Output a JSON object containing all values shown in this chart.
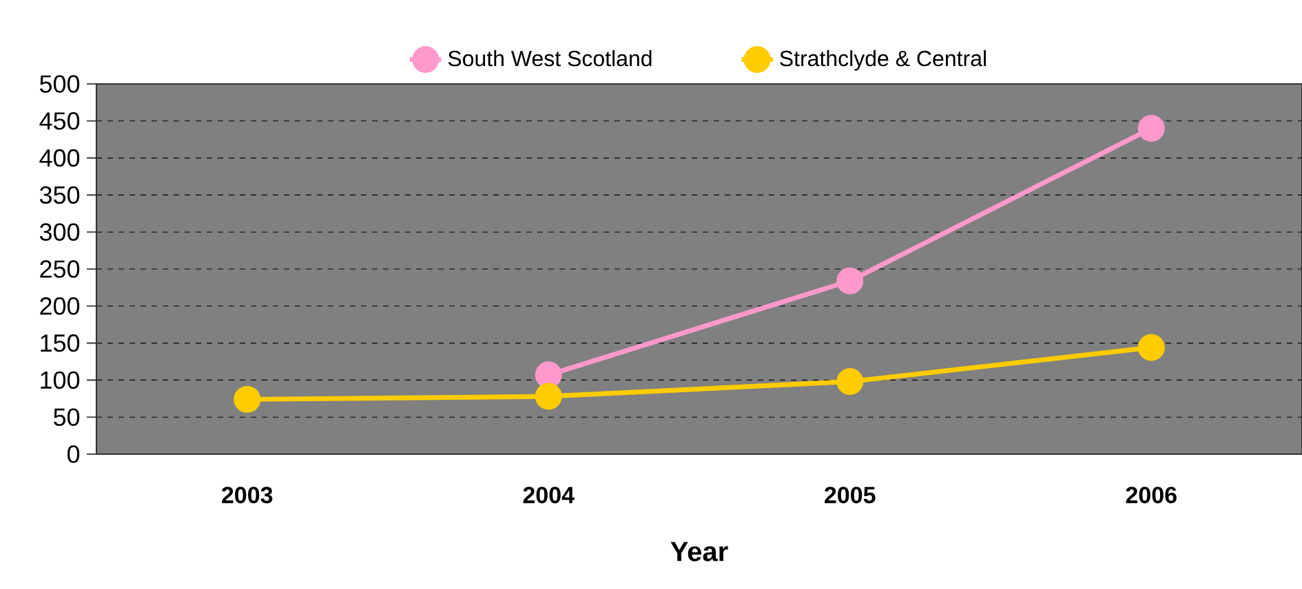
{
  "chart_data": {
    "type": "line",
    "xlabel": "Year",
    "categories": [
      "2003",
      "2004",
      "2005",
      "2006"
    ],
    "series": [
      {
        "name": "South West Scotland",
        "color": "#ff99cc",
        "values": [
          null,
          107,
          234,
          440
        ]
      },
      {
        "name": "Strathclyde & Central",
        "color": "#ffcc00",
        "values": [
          74,
          78,
          98,
          144
        ]
      }
    ],
    "ylim": [
      0,
      500
    ],
    "yticks": [
      0,
      50,
      100,
      150,
      200,
      250,
      300,
      350,
      400,
      450,
      500
    ],
    "grid": "y",
    "legend": "top",
    "marker": "circle",
    "line_style": "solid"
  }
}
